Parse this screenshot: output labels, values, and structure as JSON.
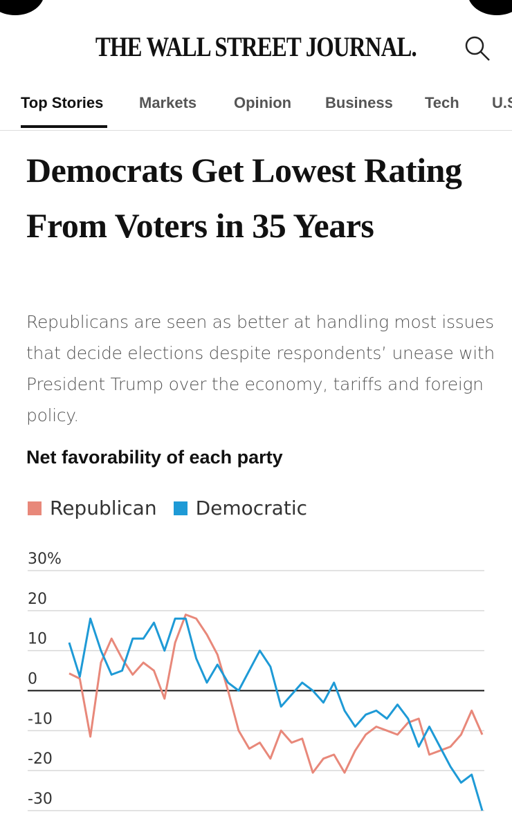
{
  "header": {
    "masthead": "THE WALL STREET JOURNAL."
  },
  "nav": [
    "Top Stories",
    "Markets",
    "Opinion",
    "Business",
    "Tech",
    "U.S."
  ],
  "article": {
    "headline": "Democrats Get Lowest Rating From Voters in 35 Years",
    "dek": "Republicans are seen as better at handling most issues that decide elections despite respondents’ unease with President Trump over the economy, tariffs and foreign policy."
  },
  "chart_data": {
    "type": "line",
    "title": "Net favorability of each party",
    "ylim": [
      -30,
      30
    ],
    "yticks": [
      {
        "value": 30,
        "label": "30%"
      },
      20,
      10,
      0,
      -10,
      -20,
      -30
    ],
    "grid": true,
    "series": [
      {
        "name": "Republican",
        "color": "#e8887a",
        "values": [
          4.3,
          3,
          -11.5,
          7,
          13,
          8,
          4,
          7,
          5,
          -2,
          12,
          19,
          18,
          14,
          9,
          0,
          -10,
          -14.5,
          -13,
          -17,
          -10,
          -13,
          -12,
          -20.5,
          -17,
          -16,
          -20.5,
          -15,
          -11,
          -9,
          -10,
          -11,
          -8,
          -7,
          -16,
          -15,
          -14,
          -11,
          -5,
          -11
        ]
      },
      {
        "name": "Democratic",
        "color": "#1e9ad6",
        "values": [
          12,
          3.5,
          18,
          10,
          4,
          5,
          13,
          13,
          17,
          10,
          18,
          18,
          8,
          2,
          6.5,
          2,
          0,
          5,
          10,
          6,
          -4,
          -1,
          2,
          0,
          -3,
          2,
          -5,
          -9,
          -6,
          -5,
          -7,
          -3.5,
          -7,
          -14,
          -9,
          -14,
          -19,
          -23,
          -21,
          -30
        ]
      }
    ]
  }
}
